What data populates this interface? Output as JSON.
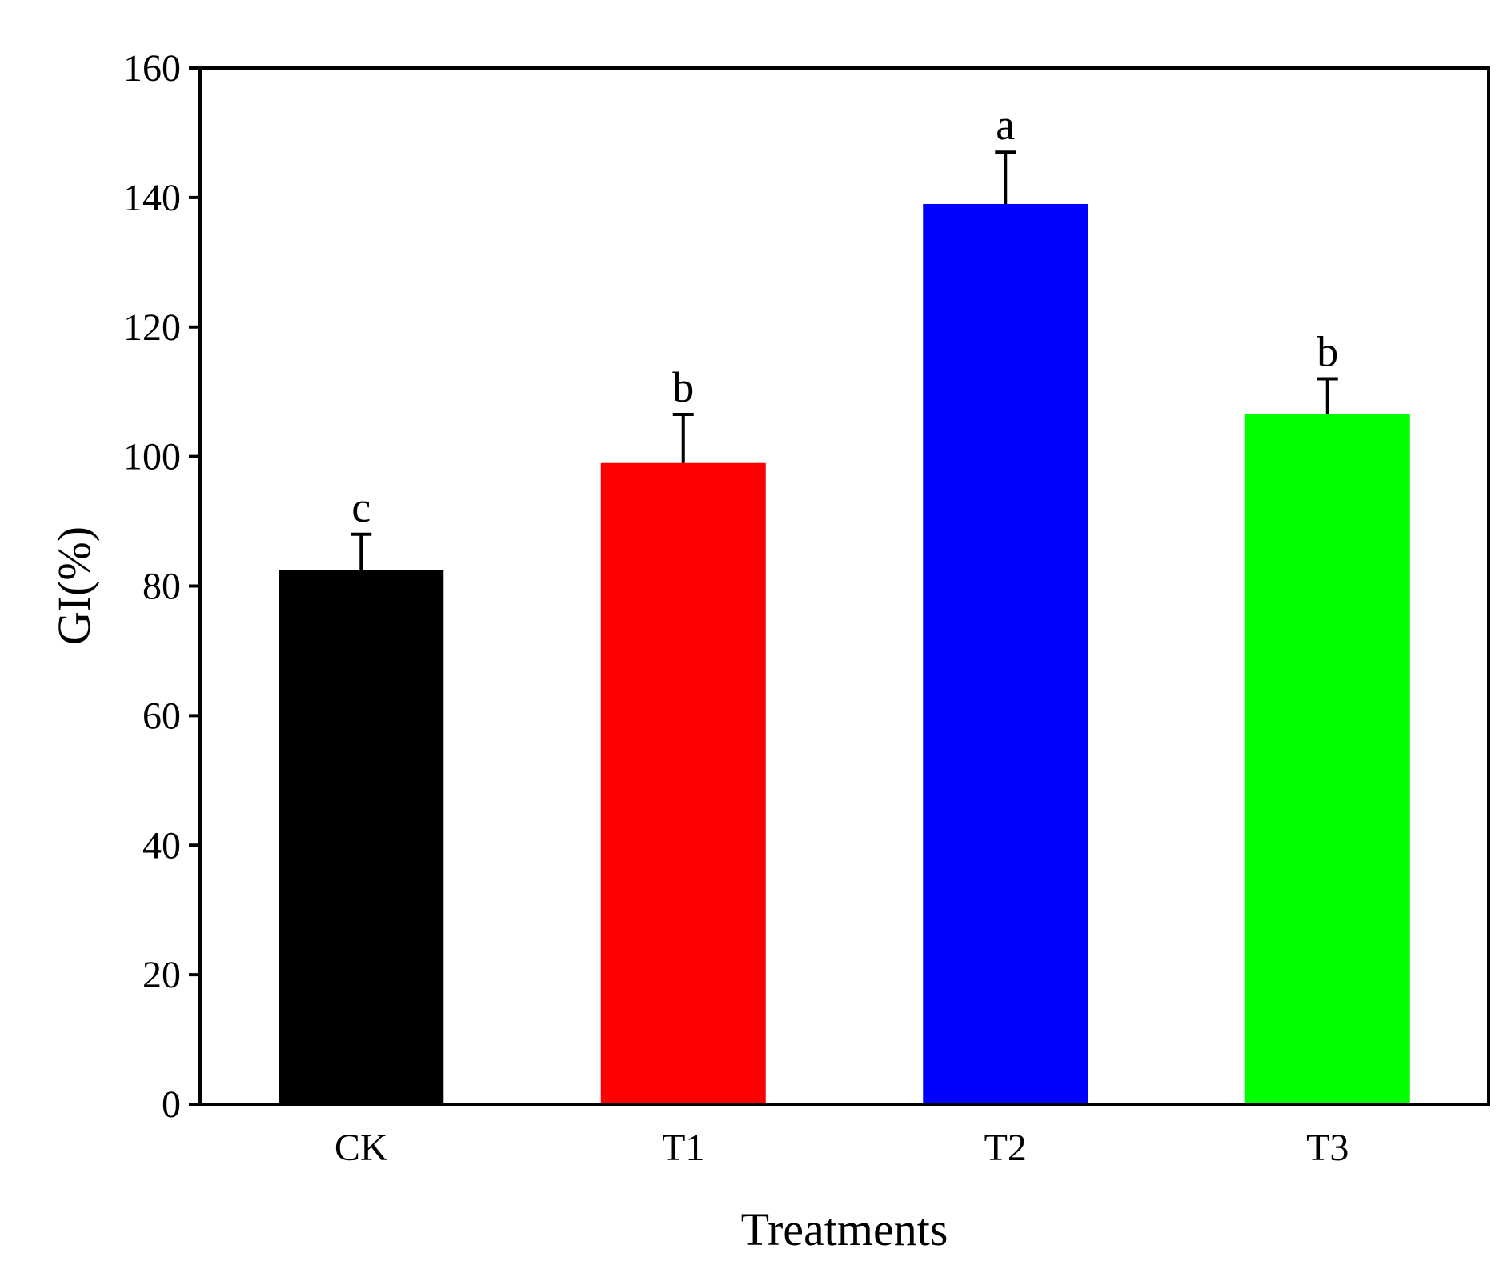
{
  "chart_data": {
    "type": "bar",
    "categories": [
      "CK",
      "T1",
      "T2",
      "T3"
    ],
    "values": [
      82.5,
      99,
      139,
      106.5
    ],
    "errors": [
      5.5,
      7.5,
      8,
      5.5
    ],
    "significance": [
      "c",
      "b",
      "a",
      "b"
    ],
    "colors": [
      "#000000",
      "#ff0000",
      "#0000ff",
      "#00ff00"
    ],
    "title": "",
    "xlabel": "Treatments",
    "ylabel": "GI(%)",
    "ylim": [
      0,
      160
    ],
    "yticks": [
      0,
      20,
      40,
      60,
      80,
      100,
      120,
      140,
      160
    ],
    "grid": false
  }
}
